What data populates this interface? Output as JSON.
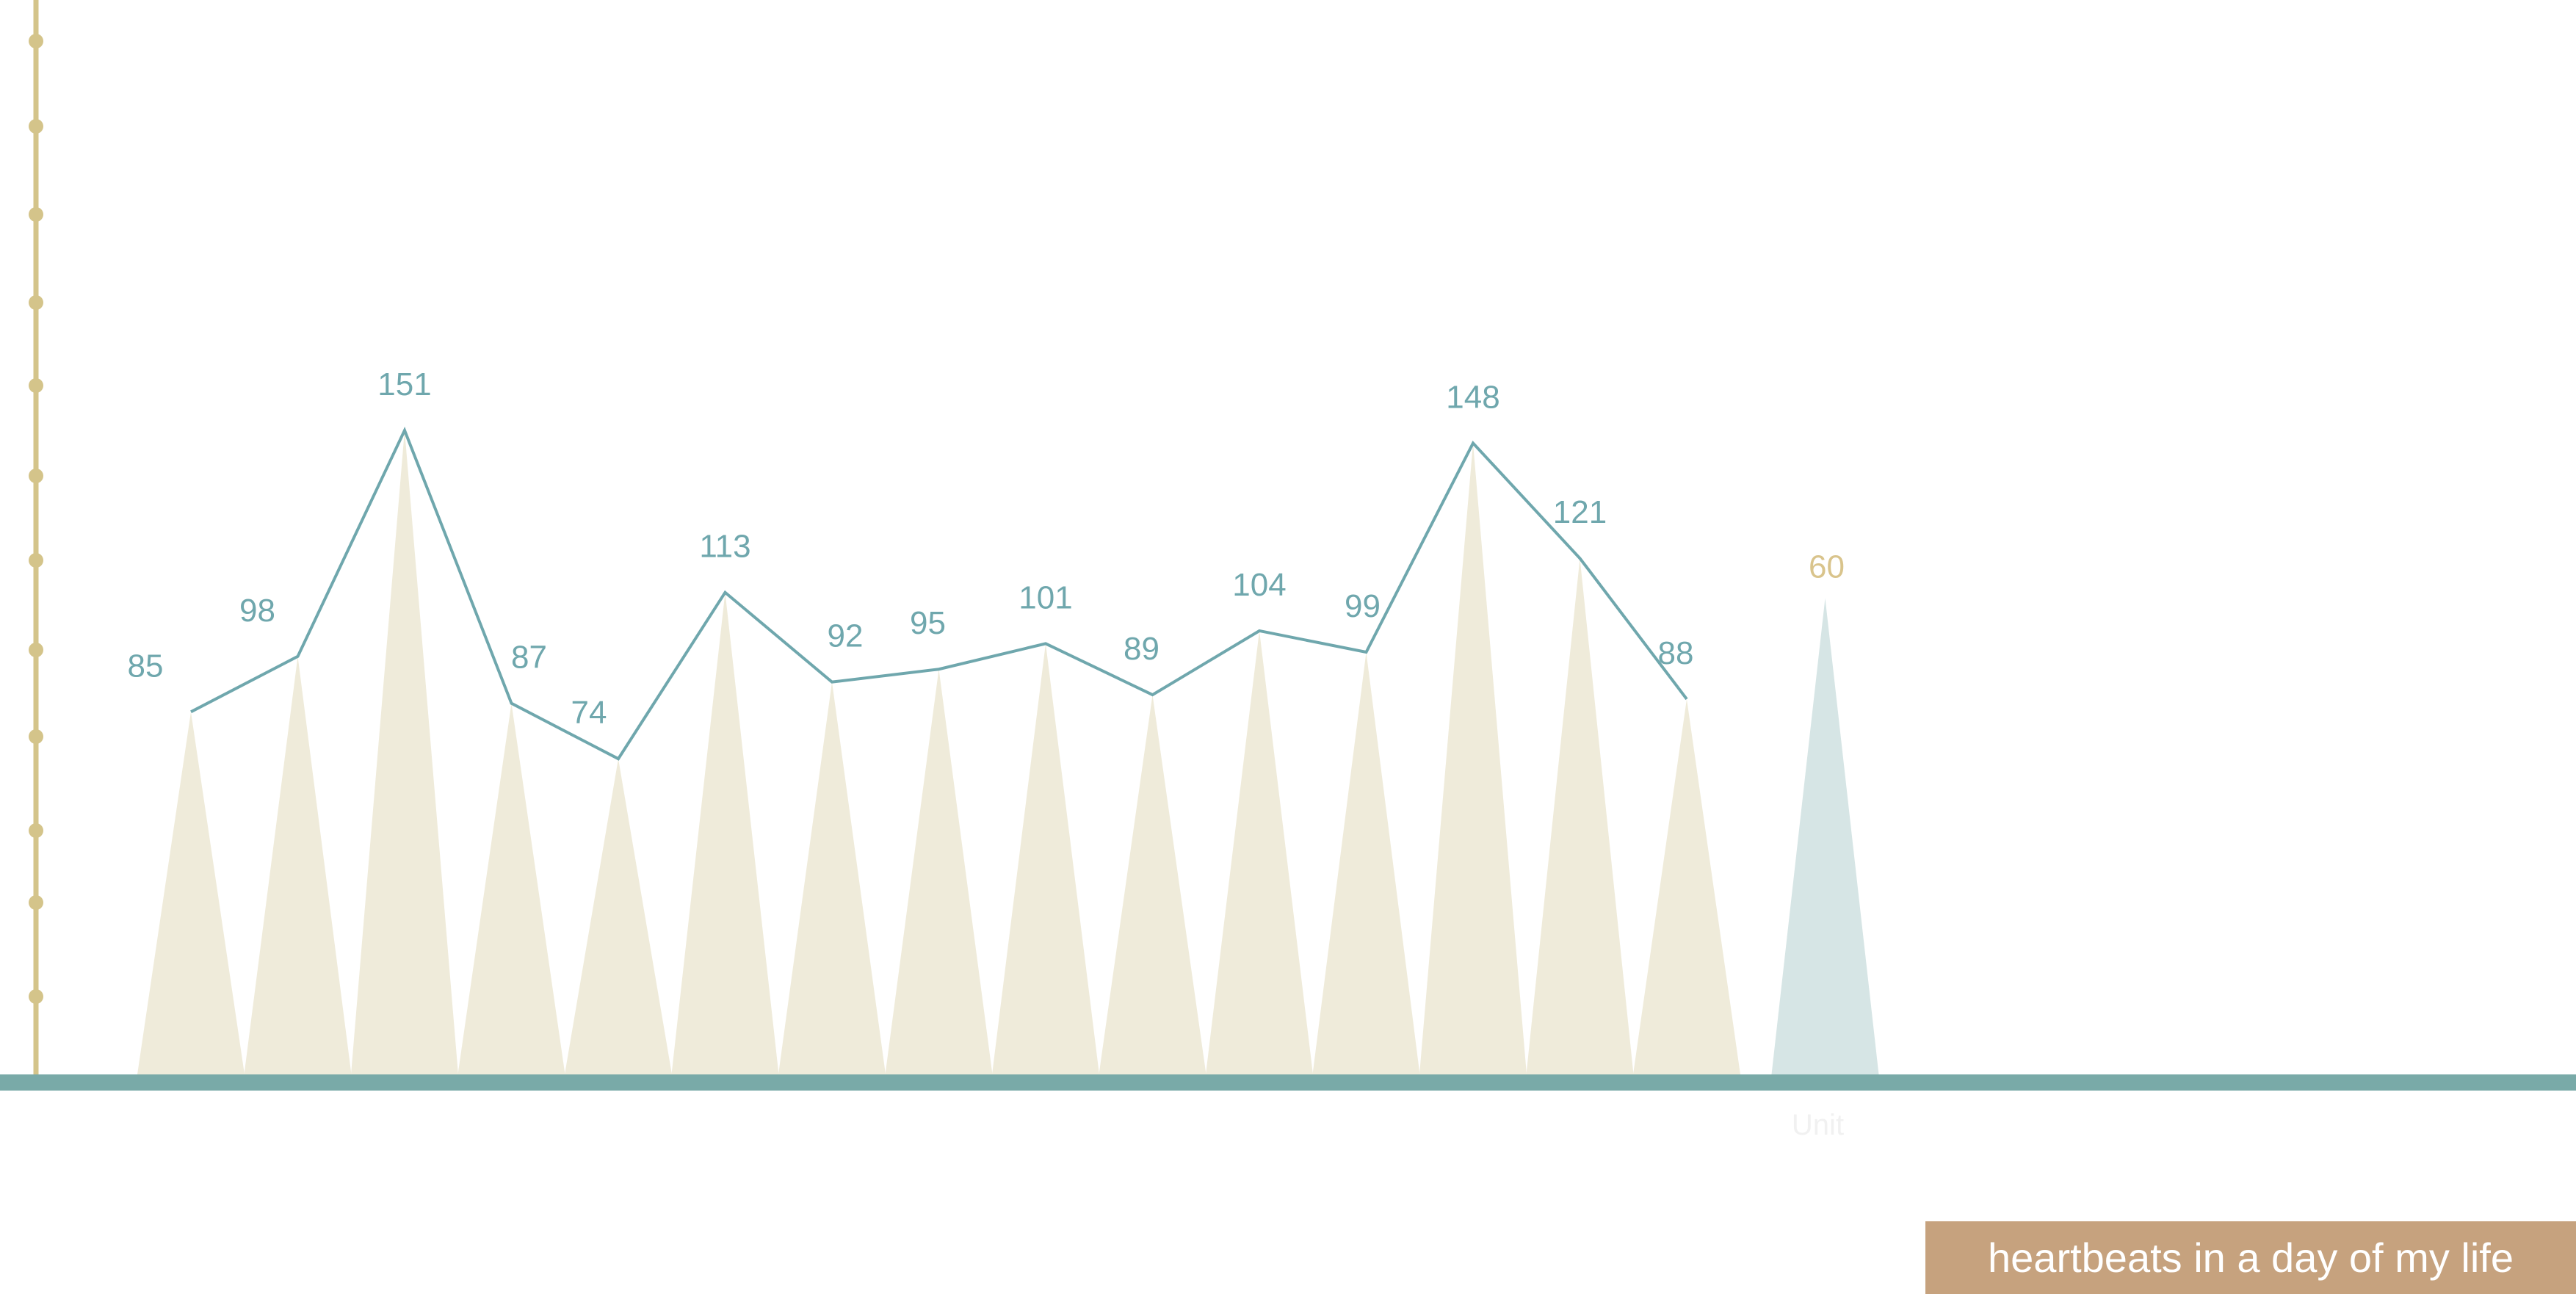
{
  "colors": {
    "axis_line": "#d4c48a",
    "baseline": "#79aaa8",
    "series_line": "#6fa7ad",
    "bar_fill": "#efebda",
    "average_bar_fill": "#d6e5e5",
    "value_label": "#6fa7ad",
    "average_label": "#d9c48c",
    "caption_bg": "#c6a27e",
    "caption_text": "#ffffff"
  },
  "caption": "heartbeats in a day of my life",
  "chart_data": {
    "type": "bar",
    "series": [
      {
        "values": [
          85,
          98,
          151,
          87,
          74,
          113,
          92,
          95,
          101,
          89,
          104,
          99,
          148,
          121,
          88
        ]
      }
    ],
    "average": {
      "value": 60,
      "label": "Unit"
    },
    "overlay_line": true,
    "ylim": [
      0,
      230
    ],
    "title": "",
    "xlabel": "",
    "ylabel": ""
  }
}
